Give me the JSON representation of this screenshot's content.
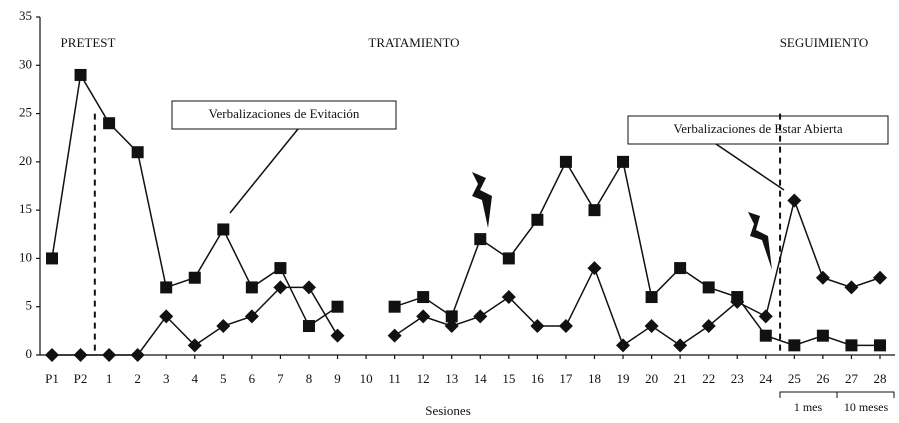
{
  "chart_data": {
    "type": "line",
    "phases": [
      "PRETEST",
      "TRATAMIENTO",
      "SEGUIMIENTO"
    ],
    "callouts": [
      "Verbalizaciones de Evitación",
      "Verbalizaciones de Estar Abierta"
    ],
    "x_label": "Sesiones",
    "followup_labels": [
      "1 mes",
      "10 meses"
    ],
    "categories": [
      "P1",
      "P2",
      "1",
      "2",
      "3",
      "4",
      "5",
      "6",
      "7",
      "8",
      "9",
      "10",
      "11",
      "12",
      "13",
      "14",
      "15",
      "16",
      "17",
      "18",
      "19",
      "20",
      "21",
      "22",
      "23",
      "24",
      "25",
      "26",
      "27",
      "28"
    ],
    "series": [
      {
        "name": "Verbalizaciones de Evitación",
        "color": "#111111",
        "marker": "square",
        "values": [
          10,
          29,
          24,
          21,
          7,
          8,
          13,
          7,
          9,
          3,
          5,
          null,
          5,
          6,
          4,
          12,
          10,
          14,
          20,
          15,
          20,
          6,
          9,
          7,
          6,
          2,
          1,
          2,
          1,
          1
        ]
      },
      {
        "name": "Verbalizaciones de Estar Abierta",
        "color": "#111111",
        "marker": "diamond",
        "values": [
          0,
          0,
          0,
          0,
          4,
          1,
          3,
          4,
          7,
          7,
          2,
          null,
          2,
          4,
          3,
          4,
          6,
          3,
          3,
          9,
          1,
          3,
          1,
          3,
          5.5,
          4,
          16,
          8,
          7,
          8
        ]
      }
    ],
    "ylim": [
      0,
      35
    ],
    "yticks": [
      0,
      5,
      10,
      15,
      20,
      25,
      30,
      35
    ],
    "grid": false
  }
}
